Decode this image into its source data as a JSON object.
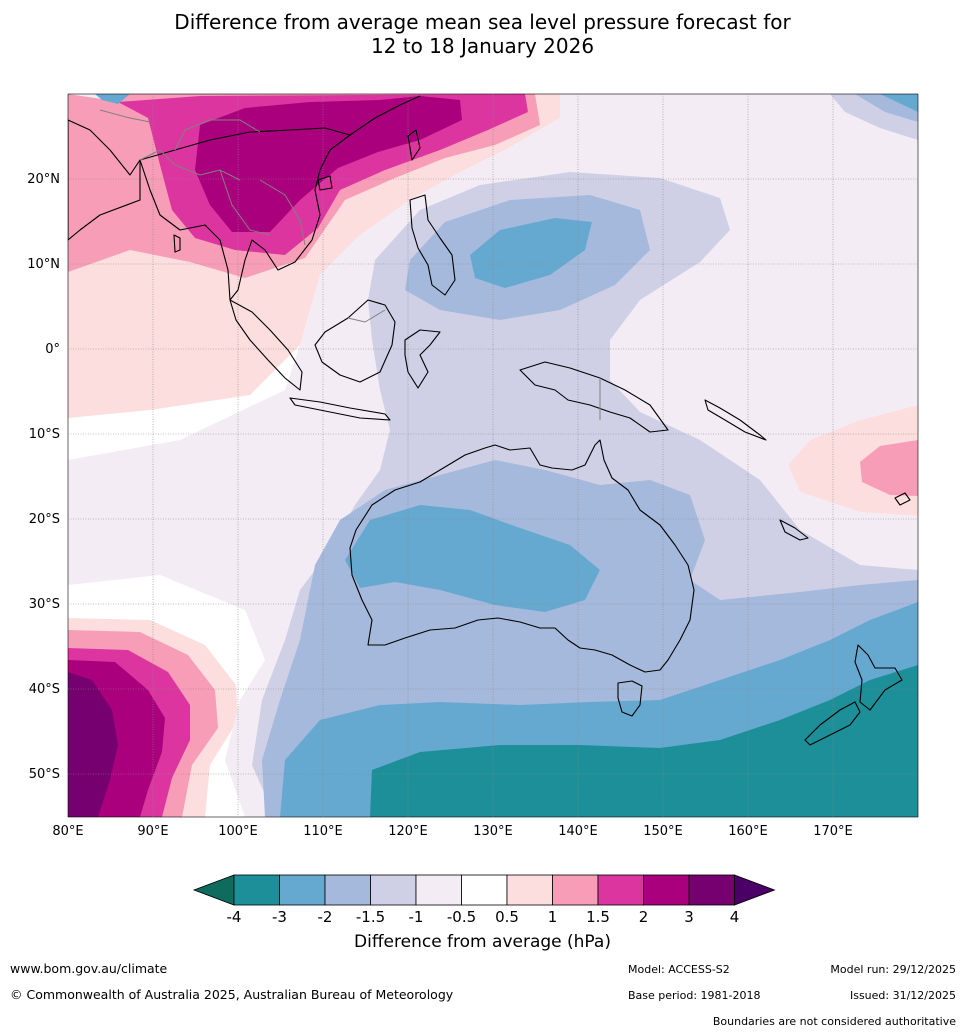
{
  "title_line1": "Difference from average mean sea level pressure forecast for",
  "title_line2": "12 to 18 January 2026",
  "map": {
    "lon_labels": [
      "80°E",
      "90°E",
      "100°E",
      "110°E",
      "120°E",
      "130°E",
      "140°E",
      "150°E",
      "160°E",
      "170°E"
    ],
    "lat_labels": [
      "20°N",
      "10°N",
      "0°",
      "10°S",
      "20°S",
      "30°S",
      "40°S",
      "50°S"
    ],
    "lon_range": [
      80,
      180
    ],
    "lat_range": [
      -55,
      30
    ]
  },
  "colorbar": {
    "title": "Difference from average (hPa)",
    "tick_labels": [
      "-4",
      "-3",
      "-2",
      "-1.5",
      "-1",
      "-0.5",
      "0.5",
      "1",
      "1.5",
      "2",
      "3",
      "4"
    ],
    "colors": [
      "#0e6b5e",
      "#1c8f98",
      "#66a9d0",
      "#a5b9dc",
      "#cfd0e6",
      "#f3ecf4",
      "#ffffff",
      "#fcdede",
      "#f79db8",
      "#dd35a0",
      "#ab007d",
      "#76006f",
      "#4a0066"
    ]
  },
  "footer": {
    "website": "www.bom.gov.au/climate",
    "copyright": "© Commonwealth of Australia 2025, Australian Bureau of Meteorology",
    "model": "Model: ACCESS-S2",
    "base_period": "Base period: 1981-2018",
    "model_run": "Model run: 29/12/2025",
    "issued": "Issued: 31/12/2025",
    "disclaimer": "Boundaries are not considered authoritative"
  }
}
